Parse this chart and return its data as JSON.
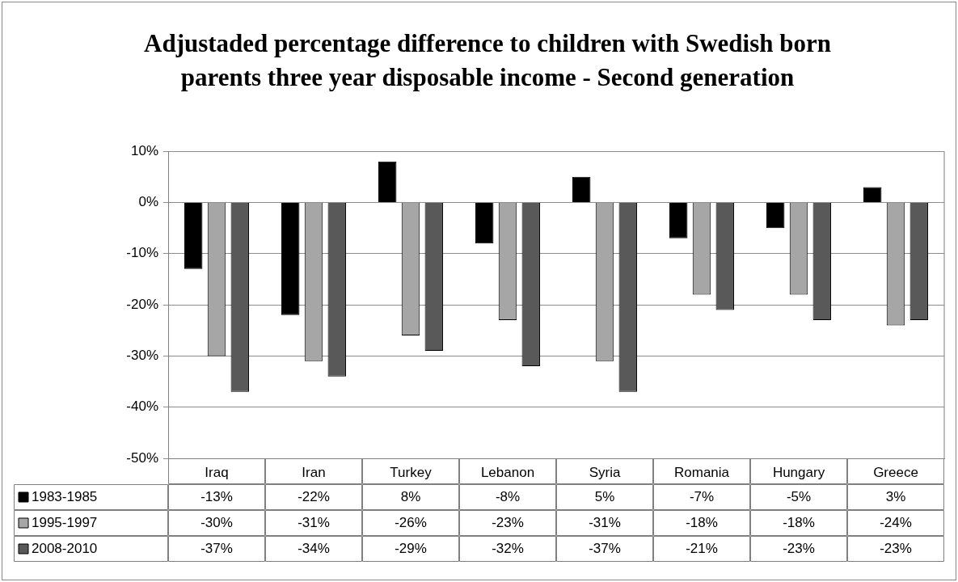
{
  "chart_data": {
    "type": "bar",
    "title": "Adjustaded percentage difference to children with Swedish born parents three year disposable income - Second generation",
    "categories": [
      "Iraq",
      "Iran",
      "Turkey",
      "Lebanon",
      "Syria",
      "Romania",
      "Hungary",
      "Greece"
    ],
    "series": [
      {
        "name": "1983-1985",
        "color": "#000000",
        "values": [
          -13,
          -22,
          8,
          -8,
          5,
          -7,
          -5,
          3
        ],
        "value_labels": [
          "-13%",
          "-22%",
          "8%",
          "-8%",
          "5%",
          "-7%",
          "-5%",
          "3%"
        ]
      },
      {
        "name": "1995-1997",
        "color": "#a6a6a6",
        "values": [
          -30,
          -31,
          -26,
          -23,
          -31,
          -18,
          -18,
          -24
        ],
        "value_labels": [
          "-30%",
          "-31%",
          "-26%",
          "-23%",
          "-31%",
          "-18%",
          "-18%",
          "-24%"
        ]
      },
      {
        "name": "2008-2010",
        "color": "#595959",
        "values": [
          -37,
          -34,
          -29,
          -32,
          -37,
          -21,
          -23,
          -23
        ],
        "value_labels": [
          "-37%",
          "-34%",
          "-29%",
          "-32%",
          "-37%",
          "-21%",
          "-23%",
          "-23%"
        ]
      }
    ],
    "ylim": [
      -50,
      10
    ],
    "yticks": [
      {
        "value": 10,
        "label": "10%"
      },
      {
        "value": 0,
        "label": "0%"
      },
      {
        "value": -10,
        "label": "-10%"
      },
      {
        "value": -20,
        "label": "-20%"
      },
      {
        "value": -30,
        "label": "-30%"
      },
      {
        "value": -40,
        "label": "-40%"
      },
      {
        "value": -50,
        "label": "-50%"
      }
    ],
    "grid": "y",
    "legend": "bottom"
  }
}
